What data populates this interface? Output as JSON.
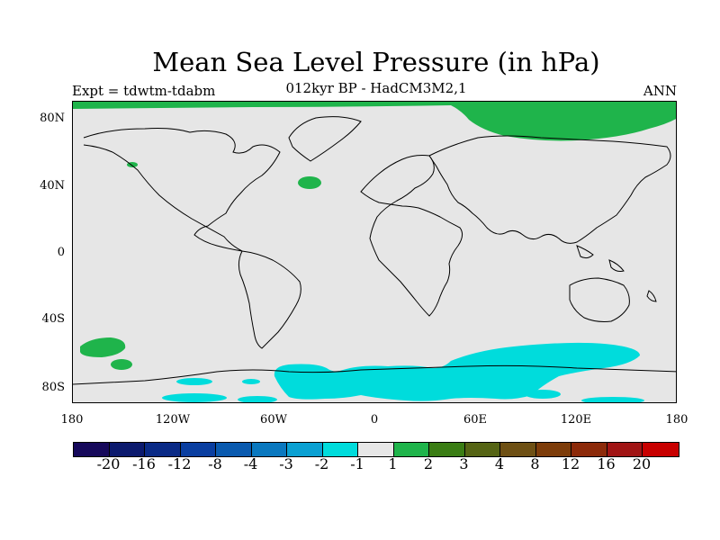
{
  "title": "Mean Sea Level Pressure (in hPa)",
  "subtitle": "012kyr BP - HadCM3M2,1",
  "left_label": "Expt = tdwtm-tdabm",
  "right_label": "ANN",
  "map": {
    "projection": "cylindrical equidistant",
    "background_color": "#e6e6e6",
    "lat_labels": [
      "80N",
      "40N",
      "0",
      "40S",
      "80S"
    ],
    "lon_labels": [
      "180",
      "120W",
      "60W",
      "0",
      "60E",
      "120E",
      "180"
    ],
    "regions": [
      {
        "name": "Arctic positive anomaly",
        "color": "#1fb44b"
      },
      {
        "name": "Southern Ocean negative anomaly",
        "color": "#00dcdc"
      }
    ]
  },
  "colorbar": {
    "colors": [
      "#16095b",
      "#0c1a6e",
      "#0a2a86",
      "#0a3ea0",
      "#0a5aaf",
      "#0a78bf",
      "#0aa0d2",
      "#00dcdc",
      "#e6e6e6",
      "#1fb44b",
      "#3a7d14",
      "#556414",
      "#6e5014",
      "#7d3c0a",
      "#8c2a0a",
      "#a01414",
      "#c80000"
    ],
    "labels": [
      "-20",
      "-16",
      "-12",
      "-8",
      "-4",
      "-3",
      "-2",
      "-1",
      "1",
      "2",
      "3",
      "4",
      "8",
      "12",
      "16",
      "20"
    ]
  }
}
